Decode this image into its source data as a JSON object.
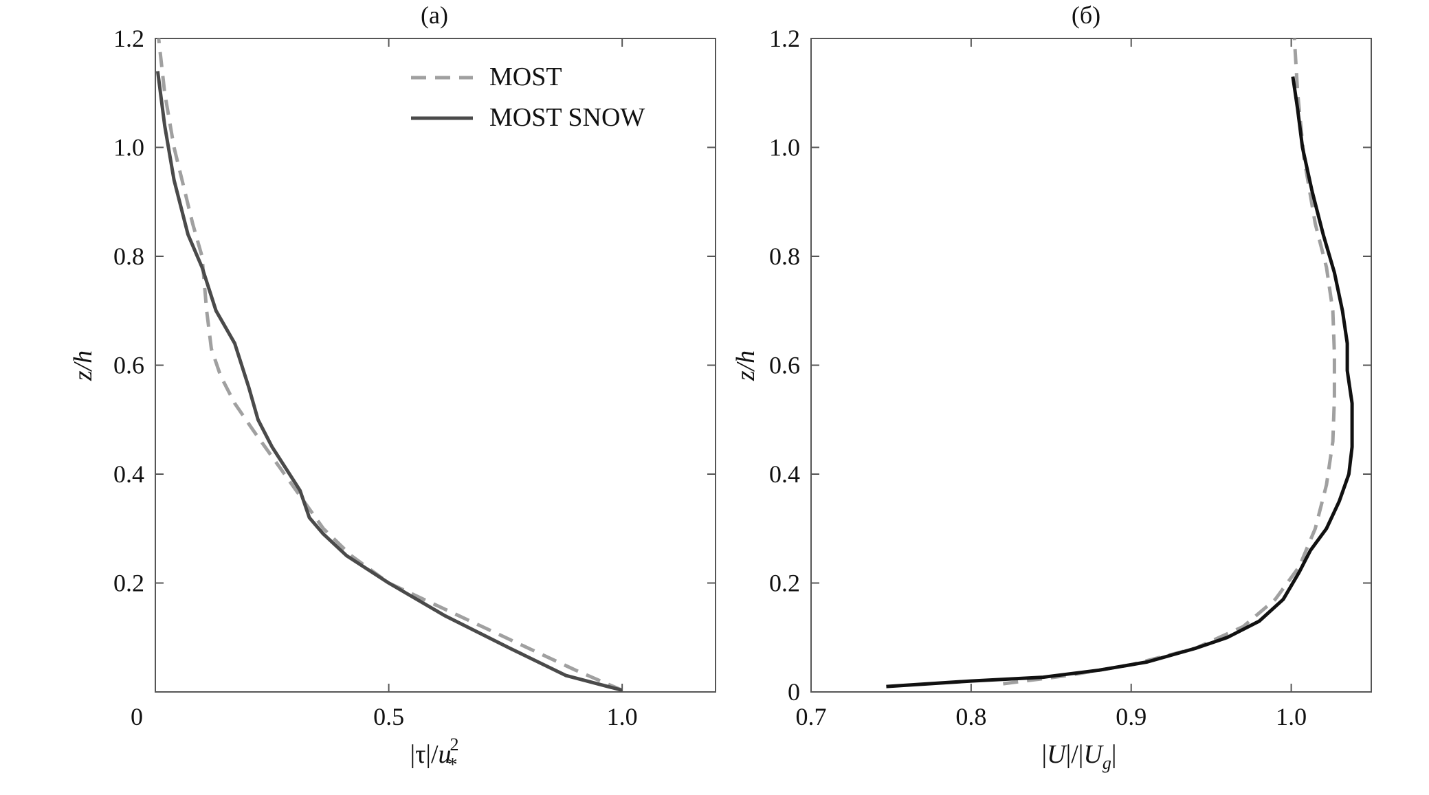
{
  "chart_data": [
    {
      "type": "line",
      "title": "(a)",
      "xlabel": "|τ|/u*²",
      "xlabel_parts": {
        "main": "|τ|/",
        "var": "u",
        "sup": "2",
        "sub": "*"
      },
      "ylabel": "z/h",
      "xlim": [
        0,
        1.2
      ],
      "ylim": [
        0,
        1.2
      ],
      "xticks": [
        {
          "v": 0,
          "label": "0"
        },
        {
          "v": 0.5,
          "label": "0.5"
        },
        {
          "v": 1.0,
          "label": "1.0"
        }
      ],
      "yticks": [
        {
          "v": 0.2,
          "label": "0.2"
        },
        {
          "v": 0.4,
          "label": "0.4"
        },
        {
          "v": 0.6,
          "label": "0.6"
        },
        {
          "v": 0.8,
          "label": "0.8"
        },
        {
          "v": 1.0,
          "label": "1.0"
        },
        {
          "v": 1.2,
          "label": "1.2"
        }
      ],
      "legend": {
        "placement": "top-right"
      },
      "series": [
        {
          "name": "MOST",
          "style": "dashed",
          "color": "#a0a0a0",
          "x": [
            1.0,
            0.9,
            0.8,
            0.7,
            0.6,
            0.5,
            0.42,
            0.36,
            0.31,
            0.26,
            0.21,
            0.17,
            0.14,
            0.12,
            0.11,
            0.1,
            0.08,
            0.06,
            0.04,
            0.02,
            0.007
          ],
          "y": [
            0.003,
            0.04,
            0.08,
            0.12,
            0.16,
            0.2,
            0.25,
            0.3,
            0.36,
            0.42,
            0.48,
            0.53,
            0.58,
            0.63,
            0.7,
            0.8,
            0.86,
            0.93,
            1.0,
            1.1,
            1.2
          ]
        },
        {
          "name": "MOST SNOW",
          "style": "solid",
          "color": "#4a4a4a",
          "x": [
            1.0,
            0.88,
            0.76,
            0.62,
            0.5,
            0.41,
            0.36,
            0.33,
            0.31,
            0.28,
            0.25,
            0.22,
            0.2,
            0.17,
            0.13,
            0.1,
            0.07,
            0.04,
            0.02,
            0.005
          ],
          "y": [
            0.003,
            0.03,
            0.08,
            0.14,
            0.2,
            0.25,
            0.29,
            0.32,
            0.37,
            0.41,
            0.45,
            0.5,
            0.56,
            0.64,
            0.7,
            0.78,
            0.84,
            0.94,
            1.04,
            1.14
          ]
        }
      ]
    },
    {
      "type": "line",
      "title": "(б)",
      "xlabel": "|U|/|Ug|",
      "xlabel_parts": {
        "open": "|",
        "var1": "U",
        "mid": "|/|",
        "var2": "U",
        "sub": "g",
        "close": "|"
      },
      "ylabel": "z/h",
      "xlim": [
        0.7,
        1.05
      ],
      "ylim": [
        0,
        1.2
      ],
      "xticks": [
        {
          "v": 0.7,
          "label": "0.7"
        },
        {
          "v": 0.8,
          "label": "0.8"
        },
        {
          "v": 0.9,
          "label": "0.9"
        },
        {
          "v": 1.0,
          "label": "1.0"
        }
      ],
      "yticks": [
        {
          "v": 0,
          "label": "0"
        },
        {
          "v": 0.2,
          "label": "0.2"
        },
        {
          "v": 0.4,
          "label": "0.4"
        },
        {
          "v": 0.6,
          "label": "0.6"
        },
        {
          "v": 0.8,
          "label": "0.8"
        },
        {
          "v": 1.0,
          "label": "1.0"
        },
        {
          "v": 1.2,
          "label": "1.2"
        }
      ],
      "series": [
        {
          "name": "MOST",
          "style": "dashed",
          "color": "#a0a0a0",
          "x": [
            0.82,
            0.86,
            0.9,
            0.94,
            0.97,
            0.99,
            1.005,
            1.015,
            1.022,
            1.026,
            1.027,
            1.027,
            1.026,
            1.022,
            1.015,
            1.008,
            1.004,
            1.002
          ],
          "y": [
            0.015,
            0.03,
            0.05,
            0.08,
            0.12,
            0.17,
            0.23,
            0.3,
            0.38,
            0.46,
            0.54,
            0.62,
            0.7,
            0.78,
            0.86,
            0.98,
            1.1,
            1.2
          ]
        },
        {
          "name": "",
          "style": "solid",
          "color": "#111111",
          "x": [
            0.747,
            0.8,
            0.845,
            0.88,
            0.91,
            0.94,
            0.96,
            0.98,
            0.995,
            1.005,
            1.012,
            1.022,
            1.03,
            1.036,
            1.038,
            1.038,
            1.035,
            1.035,
            1.032,
            1.027,
            1.02,
            1.013,
            1.007,
            1.004,
            1.001
          ],
          "y": [
            0.01,
            0.02,
            0.027,
            0.04,
            0.055,
            0.08,
            0.1,
            0.13,
            0.17,
            0.22,
            0.26,
            0.3,
            0.35,
            0.4,
            0.45,
            0.53,
            0.59,
            0.64,
            0.7,
            0.77,
            0.84,
            0.92,
            1.0,
            1.07,
            1.13
          ]
        }
      ]
    }
  ]
}
